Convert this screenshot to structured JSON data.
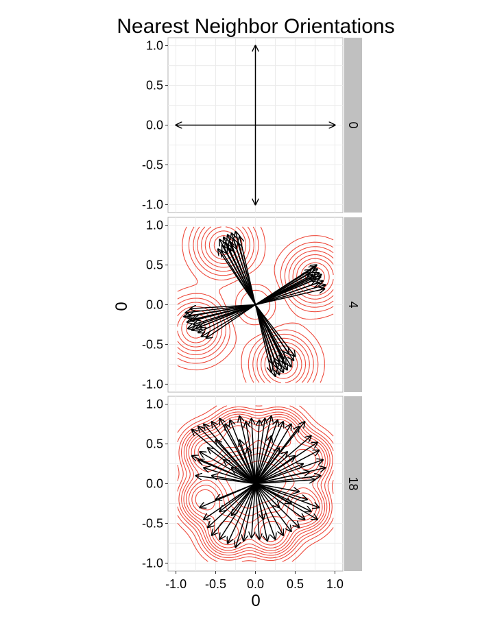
{
  "chart_data": {
    "type": "faceted-vector-field",
    "title": "Nearest Neighbor Orientations",
    "xlabel": "0",
    "ylabel": "0",
    "xlim": [
      -1.1,
      1.1
    ],
    "ylim": [
      -1.1,
      1.1
    ],
    "x_ticks": [
      "-1.0",
      "-0.5",
      "0.0",
      "0.5",
      "1.0"
    ],
    "y_ticks": [
      "-1.0",
      "-0.5",
      "0.0",
      "0.5",
      "1.0"
    ],
    "grid": true,
    "arrow_origin": [
      0,
      0
    ],
    "arrow_color": "#000000",
    "contour_color": "#ee4a3c",
    "panel_background": "#ffffff",
    "strip_background": "#c0c0c0",
    "facets": [
      {
        "strip_label": "0",
        "contours": false,
        "vectors": [
          [
            0,
            1.0
          ],
          [
            1.0,
            0
          ],
          [
            0,
            -1.0
          ],
          [
            -1.0,
            0
          ]
        ]
      },
      {
        "strip_label": "4",
        "contours": true,
        "vectors": [
          [
            -0.45,
            0.82
          ],
          [
            -0.4,
            0.85
          ],
          [
            -0.35,
            0.88
          ],
          [
            -0.3,
            0.9
          ],
          [
            -0.25,
            0.92
          ],
          [
            -0.42,
            0.75
          ],
          [
            -0.38,
            0.78
          ],
          [
            -0.33,
            0.8
          ],
          [
            -0.28,
            0.83
          ],
          [
            -0.2,
            0.86
          ],
          [
            -0.47,
            0.7
          ],
          [
            -0.43,
            0.68
          ],
          [
            -0.35,
            0.72
          ],
          [
            -0.3,
            0.75
          ],
          [
            -0.22,
            0.78
          ],
          [
            0.78,
            0.45
          ],
          [
            0.8,
            0.4
          ],
          [
            0.82,
            0.35
          ],
          [
            0.85,
            0.3
          ],
          [
            0.88,
            0.25
          ],
          [
            0.75,
            0.48
          ],
          [
            0.7,
            0.44
          ],
          [
            0.72,
            0.38
          ],
          [
            0.76,
            0.32
          ],
          [
            0.8,
            0.28
          ],
          [
            0.68,
            0.4
          ],
          [
            0.74,
            0.36
          ],
          [
            0.83,
            0.38
          ],
          [
            0.87,
            0.2
          ],
          [
            0.77,
            0.5
          ],
          [
            -0.88,
            -0.1
          ],
          [
            -0.85,
            -0.15
          ],
          [
            -0.82,
            -0.2
          ],
          [
            -0.78,
            -0.25
          ],
          [
            -0.75,
            -0.3
          ],
          [
            -0.9,
            -0.15
          ],
          [
            -0.86,
            -0.22
          ],
          [
            -0.8,
            -0.32
          ],
          [
            -0.72,
            -0.35
          ],
          [
            -0.68,
            -0.4
          ],
          [
            -0.82,
            -0.05
          ],
          [
            -0.77,
            -0.18
          ],
          [
            -0.7,
            -0.28
          ],
          [
            -0.62,
            -0.42
          ],
          [
            -0.85,
            -0.3
          ],
          [
            0.25,
            -0.9
          ],
          [
            0.3,
            -0.88
          ],
          [
            0.35,
            -0.85
          ],
          [
            0.4,
            -0.82
          ],
          [
            0.45,
            -0.78
          ],
          [
            0.2,
            -0.85
          ],
          [
            0.28,
            -0.8
          ],
          [
            0.33,
            -0.78
          ],
          [
            0.38,
            -0.75
          ],
          [
            0.48,
            -0.7
          ],
          [
            0.5,
            -0.65
          ],
          [
            0.42,
            -0.62
          ],
          [
            0.3,
            -0.72
          ],
          [
            0.22,
            -0.75
          ],
          [
            0.36,
            -0.68
          ]
        ]
      },
      {
        "strip_label": "18",
        "contours": true,
        "vectors": [
          [
            -0.8,
            0.68
          ],
          [
            -0.72,
            0.72
          ],
          [
            -0.65,
            0.75
          ],
          [
            -0.55,
            0.78
          ],
          [
            -0.45,
            0.82
          ],
          [
            -0.38,
            0.75
          ],
          [
            -0.32,
            0.8
          ],
          [
            -0.2,
            0.85
          ],
          [
            -0.12,
            0.78
          ],
          [
            -0.05,
            0.82
          ],
          [
            0.05,
            0.8
          ],
          [
            0.12,
            0.82
          ],
          [
            0.2,
            0.85
          ],
          [
            0.28,
            0.8
          ],
          [
            0.35,
            0.78
          ],
          [
            0.45,
            0.75
          ],
          [
            0.55,
            0.72
          ],
          [
            0.62,
            0.78
          ],
          [
            0.7,
            0.6
          ],
          [
            0.78,
            0.52
          ],
          [
            0.8,
            0.42
          ],
          [
            0.85,
            0.3
          ],
          [
            0.88,
            0.2
          ],
          [
            0.82,
            0.1
          ],
          [
            0.75,
            0.05
          ],
          [
            0.68,
            0.15
          ],
          [
            0.6,
            0.25
          ],
          [
            0.5,
            0.35
          ],
          [
            0.4,
            0.4
          ],
          [
            0.3,
            0.45
          ],
          [
            -0.7,
            0.4
          ],
          [
            -0.72,
            0.3
          ],
          [
            -0.65,
            0.2
          ],
          [
            -0.75,
            0.1
          ],
          [
            -0.8,
            0.35
          ],
          [
            -0.6,
            0.45
          ],
          [
            -0.5,
            0.55
          ],
          [
            -0.4,
            0.3
          ],
          [
            -0.3,
            0.2
          ],
          [
            -0.55,
            0.1
          ],
          [
            -0.7,
            -0.3
          ],
          [
            -0.65,
            -0.45
          ],
          [
            -0.6,
            -0.55
          ],
          [
            -0.55,
            -0.65
          ],
          [
            -0.45,
            -0.7
          ],
          [
            -0.35,
            -0.75
          ],
          [
            -0.25,
            -0.8
          ],
          [
            -0.15,
            -0.72
          ],
          [
            -0.05,
            -0.68
          ],
          [
            -0.45,
            -0.35
          ],
          [
            0.05,
            -0.7
          ],
          [
            0.15,
            -0.72
          ],
          [
            0.25,
            -0.7
          ],
          [
            0.35,
            -0.65
          ],
          [
            0.45,
            -0.6
          ],
          [
            0.55,
            -0.55
          ],
          [
            0.62,
            -0.45
          ],
          [
            0.7,
            -0.35
          ],
          [
            0.78,
            -0.45
          ],
          [
            0.8,
            -0.3
          ],
          [
            0.55,
            -0.1
          ],
          [
            0.65,
            -0.2
          ],
          [
            0.45,
            -0.25
          ],
          [
            0.3,
            -0.3
          ],
          [
            -0.3,
            -0.4
          ],
          [
            -0.5,
            -0.2
          ],
          [
            0.2,
            0.6
          ],
          [
            -0.2,
            0.55
          ],
          [
            0.1,
            -0.45
          ],
          [
            -0.1,
            0.45
          ]
        ]
      }
    ]
  }
}
